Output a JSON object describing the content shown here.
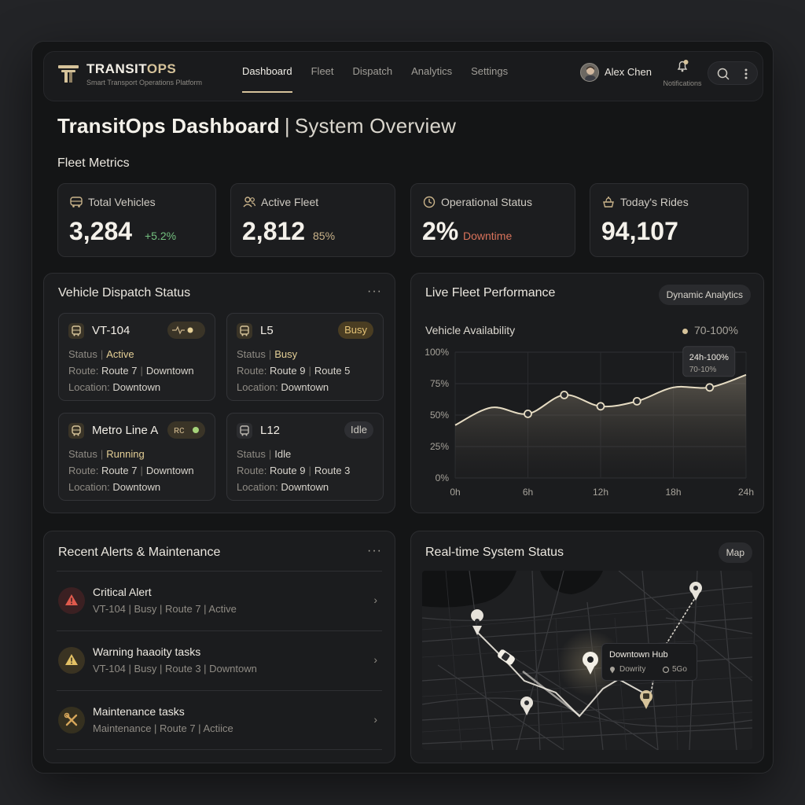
{
  "brand": {
    "name_main": "TRANSIT",
    "name_accent": "OPS",
    "subtitle": "Smart Transport Operations Platform"
  },
  "nav": [
    {
      "label": "Dashboard",
      "active": true
    },
    {
      "label": "Fleet"
    },
    {
      "label": "Dispatch"
    },
    {
      "label": "Analytics"
    },
    {
      "label": "Settings"
    }
  ],
  "user": {
    "name": "Alex Chen",
    "notifications_label": "Notifications"
  },
  "page": {
    "title_bold": "TransitOps Dashboard",
    "title_sep": "|",
    "title_light": "System Overview"
  },
  "metrics_section": "Fleet Metrics",
  "metrics": [
    {
      "label": "Total Vehicles",
      "value": "3,284",
      "sub": "+5.2%",
      "sub_color": "#74c07f",
      "icon": "bus-icon"
    },
    {
      "label": "Active Fleet",
      "value": "2,812",
      "sub": "85%",
      "sub_color": "#c9b38a",
      "icon": "users-icon"
    },
    {
      "label": "Operational Status",
      "value": "2%",
      "sub": "Downtime",
      "sub_color": "#d9735b",
      "icon": "clock-icon"
    },
    {
      "label": "Today's Rides",
      "value": "94,107",
      "sub": "",
      "icon": "rides-icon"
    }
  ],
  "dispatch": {
    "title": "Vehicle Dispatch Status",
    "more": "···",
    "cards": [
      {
        "name": "VT-104",
        "badge": "",
        "badge_type": "pulse",
        "status_label": "Status",
        "status": "Active",
        "status_color": "#e4cf96",
        "route_label": "Route:",
        "route": "Route 7",
        "route_extra": "Downtown",
        "loc_label": "Location:",
        "location": "Downtown"
      },
      {
        "name": "L5",
        "badge": "Busy",
        "badge_type": "text",
        "status_label": "Status",
        "status": "Busy",
        "status_color": "#e4cf96",
        "route_label": "Route:",
        "route": "Route 9",
        "route_extra": "Route 5",
        "loc_label": "Location:",
        "location": "Downtown"
      },
      {
        "name": "Metro Line A",
        "badge": "ʀc",
        "badge_type": "pulse",
        "status_label": "Status",
        "status": "Running",
        "status_color": "#e4cf96",
        "route_label": "Route:",
        "route": "Route 7",
        "route_extra": "Downtown",
        "loc_label": "Location:",
        "location": "Downtown"
      },
      {
        "name": "L12",
        "badge": "Idle",
        "badge_type": "idle",
        "status_label": "Status",
        "status": "Idle",
        "status_color": "#d8d4cc",
        "route_label": "Route:",
        "route": "Route 9",
        "route_extra": "Route 3",
        "loc_label": "Location:",
        "location": "Downtown"
      }
    ]
  },
  "performance": {
    "title": "Live Fleet Performance",
    "button": "Dynamic Analytics",
    "subtitle": "Vehicle Availability",
    "legend": "70-100%",
    "tooltip_title": "24h-100%",
    "tooltip_sub": "70-10%"
  },
  "chart_data": {
    "type": "area",
    "title": "Vehicle Availability",
    "x": [
      "0h",
      "3h",
      "6h",
      "9h",
      "12h",
      "15h",
      "18h",
      "21h",
      "24h"
    ],
    "xticks": [
      "0h",
      "6h",
      "12h",
      "18h",
      "24h"
    ],
    "yticks": [
      "0%",
      "25%",
      "50%",
      "75%",
      "100%"
    ],
    "ylim": [
      0,
      100
    ],
    "series": [
      {
        "values": [
          42,
          56,
          51,
          66,
          57,
          61,
          72,
          72,
          82
        ],
        "markers": [
          2,
          3,
          4,
          5,
          7
        ]
      }
    ],
    "legend_text": "70-100%"
  },
  "alerts": {
    "title": "Recent Alerts & Maintenance",
    "more": "···",
    "items": [
      {
        "title": "Critical Alert",
        "sub": "VT-104 | Busy | Route 7 | Active",
        "icon": "critical-alert-icon",
        "color": "#e05a4d"
      },
      {
        "title": "Warning haaoity tasks",
        "sub": "VT-104 | Busy | Route 3 | Downtown",
        "icon": "warning-icon",
        "color": "#e3c165"
      },
      {
        "title": "Maintenance tasks",
        "sub": "Maintenance | Route 7 | Actiice",
        "icon": "wrench-icon",
        "color": "#d6a65a"
      }
    ]
  },
  "system": {
    "title": "Real-time System Status",
    "button": "Map",
    "hub_title": "Downtown Hub",
    "hub_loc": "Dowrity",
    "hub_count": "5Go"
  }
}
